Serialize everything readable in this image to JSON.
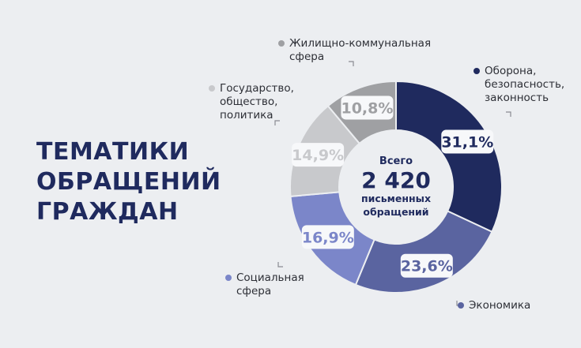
{
  "title": {
    "line1": "ТЕМАТИКИ",
    "line2": "ОБРАЩЕНИЙ",
    "line3": "ГРАЖДАН"
  },
  "center": {
    "line1": "Всего",
    "total": "2 420",
    "line3": "письменных",
    "line4": "обращений"
  },
  "chart_data": {
    "type": "pie",
    "title": "ТЕМАТИКИ ОБРАЩЕНИЙ ГРАЖДАН",
    "total": 2420,
    "slices": [
      {
        "label": "Оборона,\nбезопасность,\nзаконность",
        "value": 31.1,
        "value_label": "31,1%",
        "color": "#1f2a5e",
        "label_color": "#1f2a5e"
      },
      {
        "label": "Экономика",
        "value": 23.6,
        "value_label": "23,6%",
        "color": "#5a64a0",
        "label_color": "#5a64a0"
      },
      {
        "label": "Социальная\nсфера",
        "value": 16.9,
        "value_label": "16,9%",
        "color": "#7b86c9",
        "label_color": "#7b86c9"
      },
      {
        "label": "Государство,\nобщество,\nполитика",
        "value": 14.9,
        "value_label": "14,9%",
        "color": "#c8c9cc",
        "label_color": "#c8c9cc"
      },
      {
        "label": "Жилищно-коммунальная\nсфера",
        "value": 10.8,
        "value_label": "10,8%",
        "color": "#9fa0a3",
        "label_color": "#9fa0a3"
      }
    ]
  }
}
